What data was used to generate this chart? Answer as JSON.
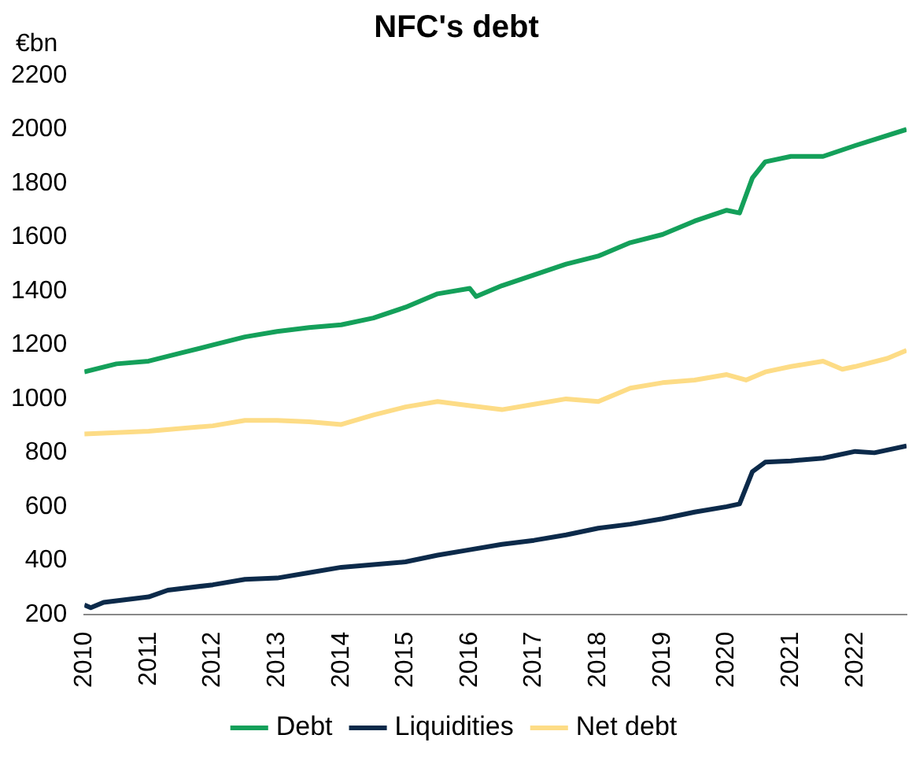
{
  "chart_data": {
    "type": "line",
    "title": "NFC's debt",
    "ylabel": "€bn",
    "xlim": [
      2010,
      2022.8
    ],
    "xticks": [
      2010,
      2011,
      2012,
      2013,
      2014,
      2015,
      2016,
      2017,
      2018,
      2019,
      2020,
      2021,
      2022
    ],
    "ylim": [
      200,
      2200
    ],
    "yticks": [
      200,
      400,
      600,
      800,
      1000,
      1200,
      1400,
      1600,
      1800,
      2000,
      2200
    ],
    "grid": false,
    "legend": "bottom",
    "marker": "none",
    "line_style": "solid",
    "series": [
      {
        "name": "Debt",
        "color": "#14a05a",
        "x": [
          2010,
          2010.5,
          2011,
          2011.5,
          2012,
          2012.5,
          2013,
          2013.5,
          2014,
          2014.5,
          2015,
          2015.5,
          2016,
          2016.1,
          2016.5,
          2017,
          2017.5,
          2018,
          2018.5,
          2019,
          2019.5,
          2020,
          2020.2,
          2020.4,
          2020.6,
          2021,
          2021.5,
          2022,
          2022.8
        ],
        "values": [
          1100,
          1130,
          1140,
          1170,
          1200,
          1230,
          1250,
          1265,
          1275,
          1300,
          1340,
          1390,
          1410,
          1380,
          1420,
          1460,
          1500,
          1530,
          1580,
          1610,
          1660,
          1700,
          1690,
          1820,
          1880,
          1900,
          1900,
          1940,
          2000
        ]
      },
      {
        "name": "Liquidities",
        "color": "#0c2a4a",
        "x": [
          2010,
          2010.1,
          2010.3,
          2011,
          2011.3,
          2012,
          2012.5,
          2013,
          2013.5,
          2014,
          2015,
          2015.5,
          2016,
          2016.5,
          2017,
          2017.5,
          2018,
          2018.5,
          2019,
          2019.5,
          2020,
          2020.2,
          2020.4,
          2020.6,
          2021,
          2021.5,
          2022,
          2022.3,
          2022.8
        ],
        "values": [
          235,
          225,
          245,
          265,
          290,
          310,
          330,
          335,
          355,
          375,
          395,
          420,
          440,
          460,
          475,
          495,
          520,
          535,
          555,
          580,
          600,
          610,
          730,
          765,
          770,
          780,
          805,
          800,
          825
        ]
      },
      {
        "name": "Net debt",
        "color": "#fddc86",
        "x": [
          2010,
          2011,
          2012,
          2012.5,
          2013,
          2013.5,
          2014,
          2014.5,
          2015,
          2015.5,
          2016,
          2016.5,
          2017,
          2017.5,
          2018,
          2018.5,
          2019,
          2019.5,
          2020,
          2020.3,
          2020.6,
          2021,
          2021.5,
          2021.8,
          2022,
          2022.5,
          2022.8
        ],
        "values": [
          870,
          880,
          900,
          920,
          920,
          915,
          905,
          940,
          970,
          990,
          975,
          960,
          980,
          1000,
          990,
          1040,
          1060,
          1070,
          1090,
          1070,
          1100,
          1120,
          1140,
          1110,
          1120,
          1150,
          1180
        ]
      }
    ]
  }
}
